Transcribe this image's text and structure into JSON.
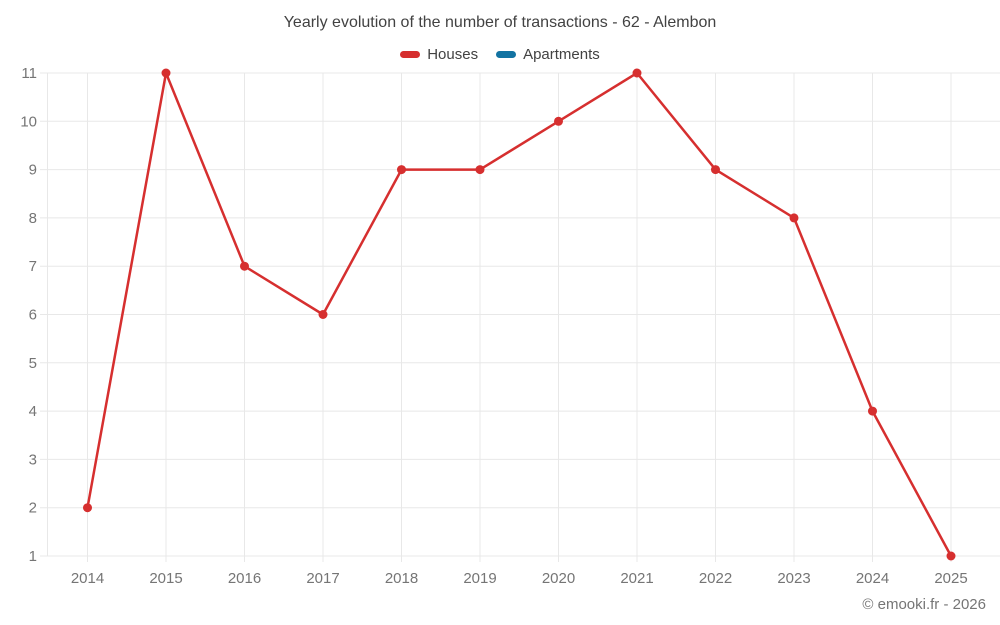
{
  "title": "Yearly evolution of the number of transactions - 62 - Alembon",
  "legend": [
    {
      "label": "Houses",
      "color": "#d62f2f"
    },
    {
      "label": "Apartments",
      "color": "#1273a2"
    }
  ],
  "copyright": "© emooki.fr - 2026",
  "colors": {
    "houses": "#d62f2f",
    "apartments": "#1273a2",
    "grid": "#e8e8e8",
    "axis_label": "#757575",
    "title_text": "#424242"
  },
  "chart_data": {
    "type": "line",
    "title": "Yearly evolution of the number of transactions - 62 - Alembon",
    "categories": [
      "2014",
      "2015",
      "2016",
      "2017",
      "2018",
      "2019",
      "2020",
      "2021",
      "2022",
      "2023",
      "2024",
      "2025"
    ],
    "series": [
      {
        "name": "Houses",
        "color": "#d62f2f",
        "values": [
          2,
          11,
          7,
          6,
          9,
          9,
          10,
          11,
          9,
          8,
          4,
          1
        ]
      },
      {
        "name": "Apartments",
        "color": "#1273a2",
        "values": []
      }
    ],
    "xlabel": "",
    "ylabel": "",
    "yticks": [
      1,
      2,
      3,
      4,
      5,
      6,
      7,
      8,
      9,
      10,
      11
    ],
    "ylim": [
      1,
      11
    ],
    "grid": true,
    "legend_position": "top"
  }
}
